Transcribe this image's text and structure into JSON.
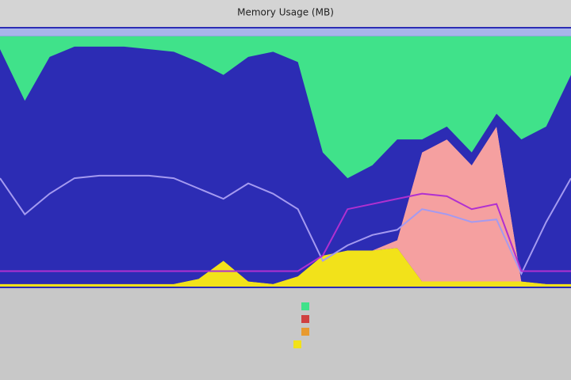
{
  "chart_data": {
    "type": "stacked-area",
    "title": "Memory Usage (MB)",
    "ylim": [
      0,
      100
    ],
    "series": [
      {
        "color": "#f2e21a",
        "values": [
          1,
          1,
          1,
          1,
          1,
          1,
          1,
          1,
          3,
          10,
          2,
          1,
          4,
          12,
          14,
          14,
          15,
          2,
          2,
          2,
          2,
          2,
          1,
          1
        ]
      },
      {
        "color": "#f5a0a0",
        "values": [
          0,
          0,
          0,
          0,
          0,
          0,
          0,
          0,
          0,
          0,
          0,
          0,
          0,
          0,
          0,
          0,
          3,
          50,
          55,
          45,
          60,
          0,
          0,
          0
        ]
      },
      {
        "color": "#2c2cb4",
        "values": [
          91,
          71,
          88,
          92,
          92,
          92,
          91,
          90,
          84,
          72,
          87,
          90,
          83,
          40,
          28,
          33,
          39,
          5,
          5,
          5,
          5,
          55,
          61,
          81
        ]
      },
      {
        "color": "#40e28a",
        "values": [
          5,
          25,
          8,
          4,
          4,
          4,
          5,
          6,
          10,
          15,
          8,
          6,
          10,
          45,
          55,
          50,
          40,
          40,
          35,
          45,
          30,
          40,
          35,
          15
        ]
      },
      {
        "color": "#a8b4ea",
        "values": [
          3,
          3,
          3,
          3,
          3,
          3,
          3,
          3,
          3,
          3,
          3,
          3,
          3,
          3,
          3,
          3,
          3,
          3,
          3,
          3,
          3,
          3,
          3,
          3
        ]
      }
    ],
    "lines": [
      {
        "color": "#a49af0",
        "values": [
          42,
          28,
          36,
          42,
          43,
          43,
          43,
          42,
          38,
          34,
          40,
          36,
          30,
          10,
          16,
          20,
          22,
          30,
          28,
          25,
          26,
          5,
          25,
          42
        ]
      },
      {
        "color": "#b030d0",
        "values": [
          6,
          6,
          6,
          6,
          6,
          6,
          6,
          6,
          6,
          6,
          6,
          6,
          6,
          12,
          30,
          32,
          34,
          36,
          35,
          30,
          32,
          6,
          6,
          6
        ]
      }
    ]
  }
}
